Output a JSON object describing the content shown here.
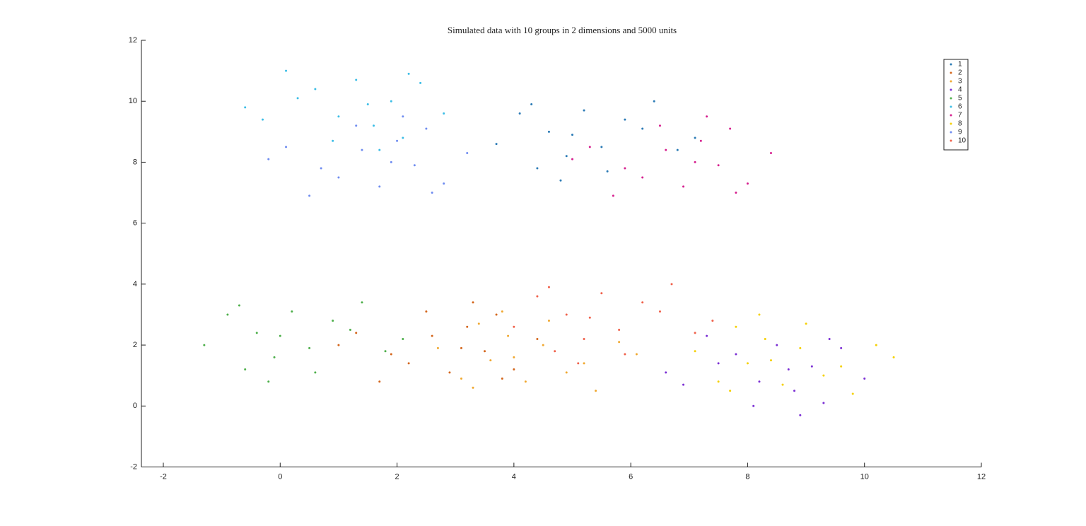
{
  "chart_data": {
    "type": "scatter",
    "title": "Simulated data with 10 groups in 2 dimensions and 5000 units",
    "xlim": [
      -2.375,
      12
    ],
    "ylim": [
      -2,
      12
    ],
    "xticks": [
      -2,
      0,
      2,
      4,
      6,
      8,
      10,
      12
    ],
    "yticks": [
      -2,
      0,
      2,
      4,
      6,
      8,
      10,
      12
    ],
    "legend": "top-right",
    "series": [
      {
        "name": "1",
        "color": "#2a7ab5",
        "x": [
          6.2,
          4.9,
          4.1,
          5.6,
          4.6,
          6.8,
          5.2,
          3.7,
          5.9,
          4.4,
          6.4,
          5.0,
          5.5,
          4.3,
          7.1,
          4.8
        ],
        "y": [
          9.1,
          8.2,
          9.6,
          7.7,
          9.0,
          8.4,
          9.7,
          8.6,
          9.4,
          7.8,
          10.0,
          8.9,
          8.5,
          9.9,
          8.8,
          7.4
        ]
      },
      {
        "name": "2",
        "color": "#d4661c",
        "x": [
          1.9,
          3.2,
          4.0,
          2.5,
          3.5,
          1.3,
          2.9,
          4.4,
          2.2,
          3.7,
          1.7,
          3.1,
          2.6,
          3.8,
          1.0,
          3.3
        ],
        "y": [
          1.7,
          2.6,
          1.2,
          3.1,
          1.8,
          2.4,
          1.1,
          2.2,
          1.4,
          3.0,
          0.8,
          1.9,
          2.3,
          0.9,
          2.0,
          3.4
        ]
      },
      {
        "name": "3",
        "color": "#f0a830",
        "x": [
          5.2,
          3.9,
          3.1,
          4.6,
          3.6,
          5.8,
          4.2,
          2.7,
          4.9,
          3.4,
          5.4,
          4.0,
          4.5,
          3.3,
          6.1,
          3.8
        ],
        "y": [
          1.4,
          2.3,
          0.9,
          2.8,
          1.5,
          2.1,
          0.8,
          1.9,
          1.1,
          2.7,
          0.5,
          1.6,
          2.0,
          0.6,
          1.7,
          3.1
        ]
      },
      {
        "name": "4",
        "color": "#7b2fd4",
        "x": [
          7.5,
          8.8,
          9.6,
          8.1,
          9.1,
          6.9,
          8.5,
          10.0,
          7.8,
          9.3,
          7.3,
          8.7,
          8.2,
          9.4,
          6.6,
          8.9
        ],
        "y": [
          1.4,
          0.5,
          1.9,
          0.0,
          1.3,
          0.7,
          2.0,
          0.9,
          1.7,
          0.1,
          2.3,
          1.2,
          0.8,
          2.2,
          1.1,
          -0.3
        ]
      },
      {
        "name": "5",
        "color": "#4daf4a",
        "x": [
          1.2,
          -0.1,
          -0.9,
          0.6,
          -0.4,
          1.8,
          0.2,
          -1.3,
          0.9,
          -0.6,
          1.4,
          0.0,
          0.5,
          -0.7,
          2.1,
          -0.2
        ],
        "y": [
          2.5,
          1.6,
          3.0,
          1.1,
          2.4,
          1.8,
          3.1,
          2.0,
          2.8,
          1.2,
          3.4,
          2.3,
          1.9,
          3.3,
          2.2,
          0.8
        ]
      },
      {
        "name": "6",
        "color": "#3bbde6",
        "x": [
          0.3,
          1.6,
          2.4,
          0.9,
          1.9,
          -0.3,
          1.3,
          2.8,
          0.6,
          2.1,
          0.1,
          1.5,
          1.0,
          2.2,
          -0.6,
          1.7
        ],
        "y": [
          10.1,
          9.2,
          10.6,
          8.7,
          10.0,
          9.4,
          10.7,
          9.6,
          10.4,
          8.8,
          11.0,
          9.9,
          9.5,
          10.9,
          9.8,
          8.4
        ]
      },
      {
        "name": "7",
        "color": "#d6208f",
        "x": [
          5.9,
          7.2,
          8.0,
          6.5,
          7.5,
          5.3,
          6.9,
          8.4,
          6.2,
          7.7,
          5.7,
          7.1,
          6.6,
          7.8,
          5.0,
          7.3
        ],
        "y": [
          7.8,
          8.7,
          7.3,
          9.2,
          7.9,
          8.5,
          7.2,
          8.3,
          7.5,
          9.1,
          6.9,
          8.0,
          8.4,
          7.0,
          8.1,
          9.5
        ]
      },
      {
        "name": "8",
        "color": "#f5d000",
        "x": [
          9.6,
          8.3,
          7.5,
          9.0,
          8.0,
          10.2,
          8.6,
          7.1,
          9.3,
          7.8,
          9.8,
          8.4,
          8.9,
          7.7,
          10.5,
          8.2
        ],
        "y": [
          1.3,
          2.2,
          0.8,
          2.7,
          1.4,
          2.0,
          0.7,
          1.8,
          1.0,
          2.6,
          0.4,
          1.5,
          1.9,
          0.5,
          1.6,
          3.0
        ]
      },
      {
        "name": "9",
        "color": "#6f8cf0",
        "x": [
          0.7,
          2.0,
          2.8,
          1.3,
          2.3,
          0.1,
          1.7,
          3.2,
          1.0,
          2.5,
          0.5,
          1.9,
          1.4,
          2.6,
          -0.2,
          2.1
        ],
        "y": [
          7.8,
          8.7,
          7.3,
          9.2,
          7.9,
          8.5,
          7.2,
          8.3,
          7.5,
          9.1,
          6.9,
          8.0,
          8.4,
          7.0,
          8.1,
          9.5
        ]
      },
      {
        "name": "10",
        "color": "#f0604a",
        "x": [
          6.5,
          5.2,
          4.4,
          5.9,
          4.9,
          7.1,
          5.5,
          4.0,
          6.2,
          4.7,
          6.7,
          5.3,
          5.8,
          4.6,
          7.4,
          5.1
        ],
        "y": [
          3.1,
          2.2,
          3.6,
          1.7,
          3.0,
          2.4,
          3.7,
          2.6,
          3.4,
          1.8,
          4.0,
          2.9,
          2.5,
          3.9,
          2.8,
          1.4
        ]
      }
    ]
  }
}
